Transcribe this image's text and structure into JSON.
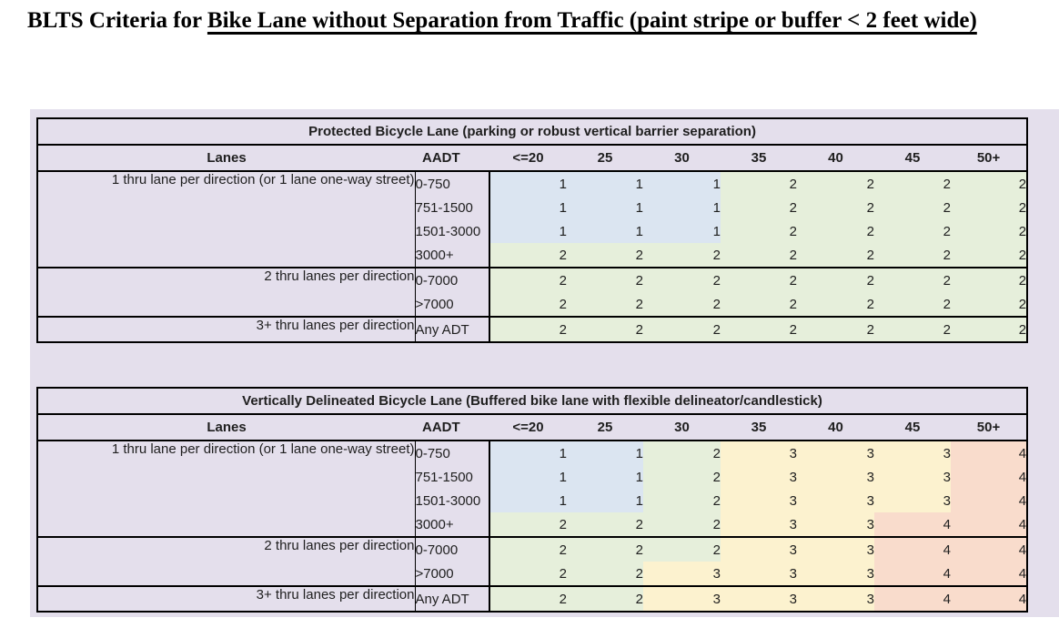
{
  "title": {
    "prefix": "BLTS Criteria for ",
    "underlined": "Bike Lane without Separation from Traffic (paint stripe or buffer < 2 feet wide)"
  },
  "colors": {
    "lavender": "#E4DFEC",
    "blue": "#DBE5F1",
    "green": "#E6EFDB",
    "yellow": "#FCF2CF",
    "pink": "#F9DCCC",
    "border": "#000000"
  },
  "tables": [
    {
      "title": "Protected Bicycle Lane (parking or robust vertical barrier separation)",
      "columns": [
        "Lanes",
        "AADT",
        "<=20",
        "25",
        "30",
        "35",
        "40",
        "45",
        "50+"
      ],
      "groups": [
        {
          "label": "1 thru lane per direction (or 1 lane one-way street)",
          "rows": [
            {
              "aadt": "0-750",
              "cells": [
                [
                  "1",
                  "blue"
                ],
                [
                  "1",
                  "blue"
                ],
                [
                  "1",
                  "blue"
                ],
                [
                  "2",
                  "green"
                ],
                [
                  "2",
                  "green"
                ],
                [
                  "2",
                  "green"
                ],
                [
                  "2",
                  "green"
                ]
              ]
            },
            {
              "aadt": "751-1500",
              "cells": [
                [
                  "1",
                  "blue"
                ],
                [
                  "1",
                  "blue"
                ],
                [
                  "1",
                  "blue"
                ],
                [
                  "2",
                  "green"
                ],
                [
                  "2",
                  "green"
                ],
                [
                  "2",
                  "green"
                ],
                [
                  "2",
                  "green"
                ]
              ]
            },
            {
              "aadt": "1501-3000",
              "cells": [
                [
                  "1",
                  "blue"
                ],
                [
                  "1",
                  "blue"
                ],
                [
                  "1",
                  "blue"
                ],
                [
                  "2",
                  "green"
                ],
                [
                  "2",
                  "green"
                ],
                [
                  "2",
                  "green"
                ],
                [
                  "2",
                  "green"
                ]
              ]
            },
            {
              "aadt": "3000+",
              "cells": [
                [
                  "2",
                  "green"
                ],
                [
                  "2",
                  "green"
                ],
                [
                  "2",
                  "green"
                ],
                [
                  "2",
                  "green"
                ],
                [
                  "2",
                  "green"
                ],
                [
                  "2",
                  "green"
                ],
                [
                  "2",
                  "green"
                ]
              ]
            }
          ]
        },
        {
          "label": "2 thru lanes per direction",
          "rows": [
            {
              "aadt": "0-7000",
              "cells": [
                [
                  "2",
                  "green"
                ],
                [
                  "2",
                  "green"
                ],
                [
                  "2",
                  "green"
                ],
                [
                  "2",
                  "green"
                ],
                [
                  "2",
                  "green"
                ],
                [
                  "2",
                  "green"
                ],
                [
                  "2",
                  "green"
                ]
              ]
            },
            {
              "aadt": ">7000",
              "cells": [
                [
                  "2",
                  "green"
                ],
                [
                  "2",
                  "green"
                ],
                [
                  "2",
                  "green"
                ],
                [
                  "2",
                  "green"
                ],
                [
                  "2",
                  "green"
                ],
                [
                  "2",
                  "green"
                ],
                [
                  "2",
                  "green"
                ]
              ]
            }
          ]
        },
        {
          "label": "3+ thru lanes per direction",
          "rows": [
            {
              "aadt": "Any ADT",
              "cells": [
                [
                  "2",
                  "green"
                ],
                [
                  "2",
                  "green"
                ],
                [
                  "2",
                  "green"
                ],
                [
                  "2",
                  "green"
                ],
                [
                  "2",
                  "green"
                ],
                [
                  "2",
                  "green"
                ],
                [
                  "2",
                  "green"
                ]
              ]
            }
          ]
        }
      ]
    },
    {
      "title": "Vertically Delineated Bicycle Lane (Buffered bike lane with flexible delineator/candlestick)",
      "columns": [
        "Lanes",
        "AADT",
        "<=20",
        "25",
        "30",
        "35",
        "40",
        "45",
        "50+"
      ],
      "groups": [
        {
          "label": "1 thru lane per direction (or 1 lane one-way street)",
          "rows": [
            {
              "aadt": "0-750",
              "cells": [
                [
                  "1",
                  "blue"
                ],
                [
                  "1",
                  "blue"
                ],
                [
                  "2",
                  "green"
                ],
                [
                  "3",
                  "yellow"
                ],
                [
                  "3",
                  "yellow"
                ],
                [
                  "3",
                  "yellow"
                ],
                [
                  "4",
                  "pink"
                ]
              ]
            },
            {
              "aadt": "751-1500",
              "cells": [
                [
                  "1",
                  "blue"
                ],
                [
                  "1",
                  "blue"
                ],
                [
                  "2",
                  "green"
                ],
                [
                  "3",
                  "yellow"
                ],
                [
                  "3",
                  "yellow"
                ],
                [
                  "3",
                  "yellow"
                ],
                [
                  "4",
                  "pink"
                ]
              ]
            },
            {
              "aadt": "1501-3000",
              "cells": [
                [
                  "1",
                  "blue"
                ],
                [
                  "1",
                  "blue"
                ],
                [
                  "2",
                  "green"
                ],
                [
                  "3",
                  "yellow"
                ],
                [
                  "3",
                  "yellow"
                ],
                [
                  "3",
                  "yellow"
                ],
                [
                  "4",
                  "pink"
                ]
              ]
            },
            {
              "aadt": "3000+",
              "cells": [
                [
                  "2",
                  "green"
                ],
                [
                  "2",
                  "green"
                ],
                [
                  "2",
                  "green"
                ],
                [
                  "3",
                  "yellow"
                ],
                [
                  "3",
                  "yellow"
                ],
                [
                  "4",
                  "pink"
                ],
                [
                  "4",
                  "pink"
                ]
              ]
            }
          ]
        },
        {
          "label": "2 thru lanes per direction",
          "rows": [
            {
              "aadt": "0-7000",
              "cells": [
                [
                  "2",
                  "green"
                ],
                [
                  "2",
                  "green"
                ],
                [
                  "2",
                  "green"
                ],
                [
                  "3",
                  "yellow"
                ],
                [
                  "3",
                  "yellow"
                ],
                [
                  "4",
                  "pink"
                ],
                [
                  "4",
                  "pink"
                ]
              ]
            },
            {
              "aadt": ">7000",
              "cells": [
                [
                  "2",
                  "green"
                ],
                [
                  "2",
                  "green"
                ],
                [
                  "3",
                  "yellow"
                ],
                [
                  "3",
                  "yellow"
                ],
                [
                  "3",
                  "yellow"
                ],
                [
                  "4",
                  "pink"
                ],
                [
                  "4",
                  "pink"
                ]
              ]
            }
          ]
        },
        {
          "label": "3+ thru lanes per direction",
          "rows": [
            {
              "aadt": "Any ADT",
              "cells": [
                [
                  "2",
                  "green"
                ],
                [
                  "2",
                  "green"
                ],
                [
                  "3",
                  "yellow"
                ],
                [
                  "3",
                  "yellow"
                ],
                [
                  "3",
                  "yellow"
                ],
                [
                  "4",
                  "pink"
                ],
                [
                  "4",
                  "pink"
                ]
              ]
            }
          ]
        }
      ]
    }
  ]
}
